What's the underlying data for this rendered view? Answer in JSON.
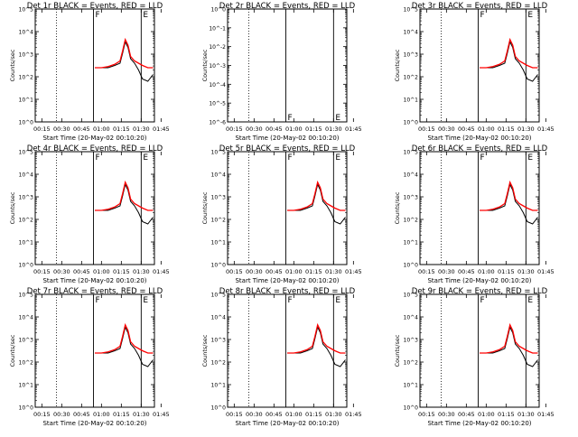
{
  "chart_data": [
    {
      "type": "line",
      "title": "Det 1r BLACK = Events, RED = LLD",
      "xlabel": "Start Time (20-May-02 00:10:20)",
      "ylabel": "Counts/sec",
      "x_ticks": [
        "00:15",
        "00:30",
        "00:45",
        "01:00",
        "01:15",
        "01:30",
        "01:45"
      ],
      "y_ticks": [
        "10^0",
        "10^1",
        "10^2",
        "10^3",
        "10^4",
        "10^5"
      ],
      "xlim_minutes": [
        10,
        100
      ],
      "ylim_log10": [
        0,
        5
      ],
      "yscale": "log",
      "dotted_lines": [
        "00:26",
        "01:40"
      ],
      "solid_lines": [
        "00:54",
        "01:30"
      ],
      "markers": [
        {
          "label": "F",
          "at": "00:54"
        },
        {
          "label": "E",
          "at": "01:30"
        }
      ],
      "series": [
        {
          "name": "BLACK",
          "color": "#000000",
          "x": [
            55,
            60,
            65,
            70,
            74,
            76,
            78,
            80,
            82,
            85,
            88,
            91,
            95,
            99
          ],
          "y": [
            2.4,
            2.4,
            2.4,
            2.5,
            2.6,
            3.05,
            3.55,
            3.3,
            2.8,
            2.6,
            2.3,
            1.9,
            1.8,
            2.1
          ]
        },
        {
          "name": "RED",
          "color": "#ff0000",
          "x": [
            55,
            60,
            65,
            70,
            74,
            76,
            78,
            80,
            82,
            85,
            88,
            91,
            95,
            99
          ],
          "y": [
            2.4,
            2.4,
            2.45,
            2.55,
            2.7,
            3.15,
            3.65,
            3.4,
            2.9,
            2.7,
            2.6,
            2.5,
            2.4,
            2.4
          ]
        }
      ]
    },
    {
      "type": "line",
      "title": "Det 2r BLACK = Events, RED = LLD",
      "xlabel": "Start Time (20-May-02 00:10:20)",
      "ylabel": "Counts/sec",
      "x_ticks": [
        "00:15",
        "00:30",
        "00:45",
        "01:00",
        "01:15",
        "01:30",
        "01:45"
      ],
      "y_ticks": [
        "10^-6",
        "10^-5",
        "10^-4",
        "10^-3",
        "10^-2",
        "10^-1",
        "10^0"
      ],
      "xlim_minutes": [
        10,
        100
      ],
      "ylim_log10": [
        -6,
        0
      ],
      "yscale": "log",
      "dotted_lines": [
        "00:26",
        "01:40"
      ],
      "solid_lines": [
        "00:54",
        "01:30"
      ],
      "markers": [
        {
          "label": "F",
          "at": "00:54"
        },
        {
          "label": "E",
          "at": "01:30"
        }
      ],
      "series": []
    },
    {
      "type": "line",
      "title": "Det 3r BLACK = Events, RED = LLD",
      "xlabel": "Start Time (20-May-02 00:10:20)",
      "ylabel": "Counts/sec",
      "x_ticks": [
        "00:15",
        "00:30",
        "00:45",
        "01:00",
        "01:15",
        "01:30",
        "01:45"
      ],
      "y_ticks": [
        "10^0",
        "10^1",
        "10^2",
        "10^3",
        "10^4",
        "10^5"
      ],
      "xlim_minutes": [
        10,
        100
      ],
      "ylim_log10": [
        0,
        5
      ],
      "yscale": "log",
      "dotted_lines": [
        "00:26",
        "01:40"
      ],
      "solid_lines": [
        "00:54",
        "01:30"
      ],
      "markers": [
        {
          "label": "F",
          "at": "00:54"
        },
        {
          "label": "E",
          "at": "01:30"
        }
      ],
      "series": [
        {
          "name": "BLACK",
          "color": "#000000",
          "x": [
            55,
            60,
            65,
            70,
            74,
            76,
            78,
            80,
            82,
            85,
            88,
            91,
            95,
            99
          ],
          "y": [
            2.4,
            2.4,
            2.4,
            2.5,
            2.6,
            3.05,
            3.55,
            3.3,
            2.8,
            2.6,
            2.3,
            1.9,
            1.8,
            2.1
          ]
        },
        {
          "name": "RED",
          "color": "#ff0000",
          "x": [
            55,
            60,
            65,
            70,
            74,
            76,
            78,
            80,
            82,
            85,
            88,
            91,
            95,
            99
          ],
          "y": [
            2.4,
            2.4,
            2.45,
            2.55,
            2.7,
            3.15,
            3.65,
            3.4,
            2.9,
            2.7,
            2.6,
            2.5,
            2.4,
            2.4
          ]
        }
      ]
    },
    {
      "type": "line",
      "title": "Det 4r BLACK = Events, RED = LLD",
      "xlabel": "Start Time (20-May-02 00:10:20)",
      "ylabel": "Counts/sec",
      "x_ticks": [
        "00:15",
        "00:30",
        "00:45",
        "01:00",
        "01:15",
        "01:30",
        "01:45"
      ],
      "y_ticks": [
        "10^0",
        "10^1",
        "10^2",
        "10^3",
        "10^4",
        "10^5"
      ],
      "xlim_minutes": [
        10,
        100
      ],
      "ylim_log10": [
        0,
        5
      ],
      "yscale": "log",
      "dotted_lines": [
        "00:26",
        "01:40"
      ],
      "solid_lines": [
        "00:54",
        "01:30"
      ],
      "markers": [
        {
          "label": "F",
          "at": "00:54"
        },
        {
          "label": "E",
          "at": "01:30"
        }
      ],
      "series": [
        {
          "name": "BLACK",
          "color": "#000000",
          "x": [
            55,
            60,
            65,
            70,
            74,
            76,
            78,
            80,
            82,
            85,
            88,
            91,
            95,
            99
          ],
          "y": [
            2.4,
            2.4,
            2.4,
            2.5,
            2.6,
            3.05,
            3.55,
            3.3,
            2.8,
            2.6,
            2.3,
            1.9,
            1.8,
            2.1
          ]
        },
        {
          "name": "RED",
          "color": "#ff0000",
          "x": [
            55,
            60,
            65,
            70,
            74,
            76,
            78,
            80,
            82,
            85,
            88,
            91,
            95,
            99
          ],
          "y": [
            2.4,
            2.4,
            2.45,
            2.55,
            2.7,
            3.15,
            3.65,
            3.4,
            2.9,
            2.7,
            2.6,
            2.5,
            2.4,
            2.4
          ]
        }
      ]
    },
    {
      "type": "line",
      "title": "Det 5r BLACK = Events, RED = LLD",
      "xlabel": "Start Time (20-May-02 00:10:20)",
      "ylabel": "Counts/sec",
      "x_ticks": [
        "00:15",
        "00:30",
        "00:45",
        "01:00",
        "01:15",
        "01:30",
        "01:45"
      ],
      "y_ticks": [
        "10^0",
        "10^1",
        "10^2",
        "10^3",
        "10^4",
        "10^5"
      ],
      "xlim_minutes": [
        10,
        100
      ],
      "ylim_log10": [
        0,
        5
      ],
      "yscale": "log",
      "dotted_lines": [
        "00:26",
        "01:40"
      ],
      "solid_lines": [
        "00:54",
        "01:30"
      ],
      "markers": [
        {
          "label": "F",
          "at": "00:54"
        },
        {
          "label": "E",
          "at": "01:30"
        }
      ],
      "series": [
        {
          "name": "BLACK",
          "color": "#000000",
          "x": [
            55,
            60,
            65,
            70,
            74,
            76,
            78,
            80,
            82,
            85,
            88,
            91,
            95,
            99
          ],
          "y": [
            2.4,
            2.4,
            2.4,
            2.5,
            2.6,
            3.05,
            3.55,
            3.3,
            2.8,
            2.6,
            2.3,
            1.9,
            1.8,
            2.1
          ]
        },
        {
          "name": "RED",
          "color": "#ff0000",
          "x": [
            55,
            60,
            65,
            70,
            74,
            76,
            78,
            80,
            82,
            85,
            88,
            91,
            95,
            99
          ],
          "y": [
            2.4,
            2.4,
            2.45,
            2.55,
            2.7,
            3.15,
            3.65,
            3.4,
            2.9,
            2.7,
            2.6,
            2.5,
            2.4,
            2.4
          ]
        }
      ]
    },
    {
      "type": "line",
      "title": "Det 6r BLACK = Events, RED = LLD",
      "xlabel": "Start Time (20-May-02 00:10:20)",
      "ylabel": "Counts/sec",
      "x_ticks": [
        "00:15",
        "00:30",
        "00:45",
        "01:00",
        "01:15",
        "01:30",
        "01:45"
      ],
      "y_ticks": [
        "10^0",
        "10^1",
        "10^2",
        "10^3",
        "10^4",
        "10^5"
      ],
      "xlim_minutes": [
        10,
        100
      ],
      "ylim_log10": [
        0,
        5
      ],
      "yscale": "log",
      "dotted_lines": [
        "00:26",
        "01:40"
      ],
      "solid_lines": [
        "00:54",
        "01:30"
      ],
      "markers": [
        {
          "label": "F",
          "at": "00:54"
        },
        {
          "label": "E",
          "at": "01:30"
        }
      ],
      "series": [
        {
          "name": "BLACK",
          "color": "#000000",
          "x": [
            55,
            60,
            65,
            70,
            74,
            76,
            78,
            80,
            82,
            85,
            88,
            91,
            95,
            99
          ],
          "y": [
            2.4,
            2.4,
            2.4,
            2.5,
            2.6,
            3.05,
            3.55,
            3.3,
            2.8,
            2.6,
            2.3,
            1.9,
            1.8,
            2.1
          ]
        },
        {
          "name": "RED",
          "color": "#ff0000",
          "x": [
            55,
            60,
            65,
            70,
            74,
            76,
            78,
            80,
            82,
            85,
            88,
            91,
            95,
            99
          ],
          "y": [
            2.4,
            2.4,
            2.45,
            2.55,
            2.7,
            3.15,
            3.65,
            3.4,
            2.9,
            2.7,
            2.6,
            2.5,
            2.4,
            2.4
          ]
        }
      ]
    },
    {
      "type": "line",
      "title": "Det 7r BLACK = Events, RED = LLD",
      "xlabel": "Start Time (20-May-02 00:10:20)",
      "ylabel": "Counts/sec",
      "x_ticks": [
        "00:15",
        "00:30",
        "00:45",
        "01:00",
        "01:15",
        "01:30",
        "01:45"
      ],
      "y_ticks": [
        "10^0",
        "10^1",
        "10^2",
        "10^3",
        "10^4",
        "10^5"
      ],
      "xlim_minutes": [
        10,
        100
      ],
      "ylim_log10": [
        0,
        5
      ],
      "yscale": "log",
      "dotted_lines": [
        "00:26",
        "01:40"
      ],
      "solid_lines": [
        "00:54",
        "01:30"
      ],
      "markers": [
        {
          "label": "F",
          "at": "00:54"
        },
        {
          "label": "E",
          "at": "01:30"
        }
      ],
      "series": [
        {
          "name": "BLACK",
          "color": "#000000",
          "x": [
            55,
            60,
            65,
            70,
            74,
            76,
            78,
            80,
            82,
            85,
            88,
            91,
            95,
            99
          ],
          "y": [
            2.4,
            2.4,
            2.4,
            2.5,
            2.6,
            3.05,
            3.55,
            3.3,
            2.8,
            2.6,
            2.3,
            1.9,
            1.8,
            2.1
          ]
        },
        {
          "name": "RED",
          "color": "#ff0000",
          "x": [
            55,
            60,
            65,
            70,
            74,
            76,
            78,
            80,
            82,
            85,
            88,
            91,
            95,
            99
          ],
          "y": [
            2.4,
            2.4,
            2.45,
            2.55,
            2.7,
            3.15,
            3.65,
            3.4,
            2.9,
            2.7,
            2.6,
            2.5,
            2.4,
            2.4
          ]
        }
      ]
    },
    {
      "type": "line",
      "title": "Det 8r BLACK = Events, RED = LLD",
      "xlabel": "Start Time (20-May-02 00:10:20)",
      "ylabel": "Counts/sec",
      "x_ticks": [
        "00:15",
        "00:30",
        "00:45",
        "01:00",
        "01:15",
        "01:30",
        "01:45"
      ],
      "y_ticks": [
        "10^0",
        "10^1",
        "10^2",
        "10^3",
        "10^4",
        "10^5"
      ],
      "xlim_minutes": [
        10,
        100
      ],
      "ylim_log10": [
        0,
        5
      ],
      "yscale": "log",
      "dotted_lines": [
        "00:26",
        "01:40"
      ],
      "solid_lines": [
        "00:54",
        "01:30"
      ],
      "markers": [
        {
          "label": "F",
          "at": "00:54"
        },
        {
          "label": "E",
          "at": "01:30"
        }
      ],
      "series": [
        {
          "name": "BLACK",
          "color": "#000000",
          "x": [
            55,
            60,
            65,
            70,
            74,
            76,
            78,
            80,
            82,
            85,
            88,
            91,
            95,
            99
          ],
          "y": [
            2.4,
            2.4,
            2.4,
            2.5,
            2.6,
            3.05,
            3.55,
            3.3,
            2.8,
            2.6,
            2.3,
            1.9,
            1.8,
            2.1
          ]
        },
        {
          "name": "RED",
          "color": "#ff0000",
          "x": [
            55,
            60,
            65,
            70,
            74,
            76,
            78,
            80,
            82,
            85,
            88,
            91,
            95,
            99
          ],
          "y": [
            2.4,
            2.4,
            2.45,
            2.55,
            2.7,
            3.15,
            3.65,
            3.4,
            2.9,
            2.7,
            2.6,
            2.5,
            2.4,
            2.4
          ]
        }
      ]
    },
    {
      "type": "line",
      "title": "Det 9r BLACK = Events, RED = LLD",
      "xlabel": "Start Time (20-May-02 00:10:20)",
      "ylabel": "Counts/sec",
      "x_ticks": [
        "00:15",
        "00:30",
        "00:45",
        "01:00",
        "01:15",
        "01:30",
        "01:45"
      ],
      "y_ticks": [
        "10^0",
        "10^1",
        "10^2",
        "10^3",
        "10^4",
        "10^5"
      ],
      "xlim_minutes": [
        10,
        100
      ],
      "ylim_log10": [
        0,
        5
      ],
      "yscale": "log",
      "dotted_lines": [
        "00:26",
        "01:40"
      ],
      "solid_lines": [
        "00:54",
        "01:30"
      ],
      "markers": [
        {
          "label": "F",
          "at": "00:54"
        },
        {
          "label": "E",
          "at": "01:30"
        }
      ],
      "series": [
        {
          "name": "BLACK",
          "color": "#000000",
          "x": [
            55,
            60,
            65,
            70,
            74,
            76,
            78,
            80,
            82,
            85,
            88,
            91,
            95,
            99
          ],
          "y": [
            2.4,
            2.4,
            2.4,
            2.5,
            2.6,
            3.05,
            3.55,
            3.3,
            2.8,
            2.6,
            2.3,
            1.9,
            1.8,
            2.1
          ]
        },
        {
          "name": "RED",
          "color": "#ff0000",
          "x": [
            55,
            60,
            65,
            70,
            74,
            76,
            78,
            80,
            82,
            85,
            88,
            91,
            95,
            99
          ],
          "y": [
            2.4,
            2.4,
            2.45,
            2.55,
            2.7,
            3.15,
            3.65,
            3.4,
            2.9,
            2.7,
            2.6,
            2.5,
            2.4,
            2.4
          ]
        }
      ]
    }
  ]
}
